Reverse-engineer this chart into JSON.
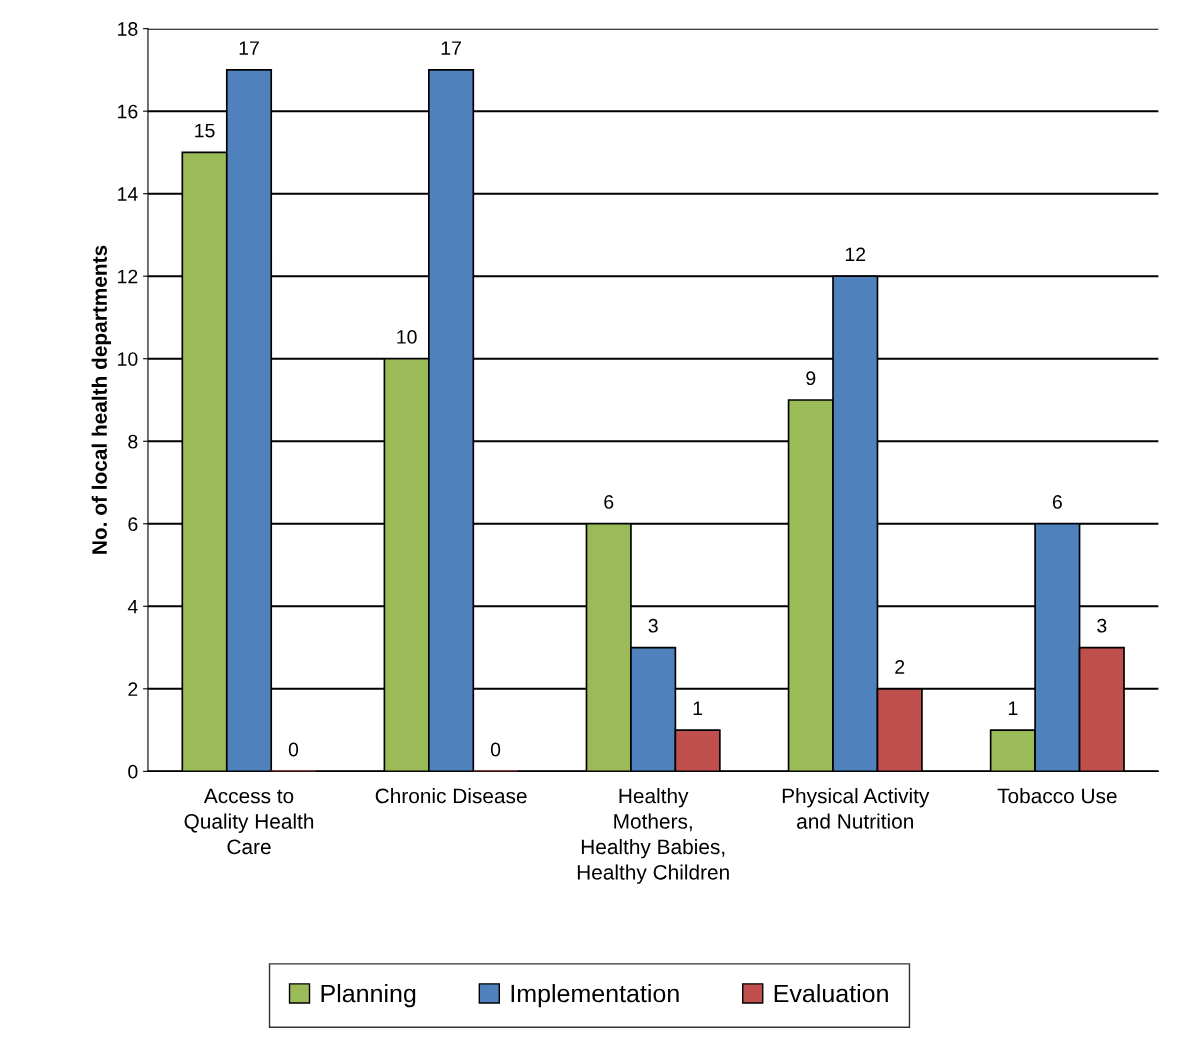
{
  "chart_data": {
    "type": "bar",
    "ylabel": "No. of local health departments",
    "categories": [
      "Access to\nQuality Health\nCare",
      "Chronic Disease",
      "Healthy\nMothers,\nHealthy Babies,\nHealthy Children",
      "Physical Activity\nand Nutrition",
      "Tobacco Use"
    ],
    "series": [
      {
        "name": "Planning",
        "color": "#9bbb59",
        "values": [
          15,
          10,
          6,
          9,
          1
        ]
      },
      {
        "name": "Implementation",
        "color": "#4f81bd",
        "values": [
          17,
          17,
          3,
          12,
          6
        ]
      },
      {
        "name": "Evaluation",
        "color": "#c0504d",
        "values": [
          0,
          0,
          1,
          2,
          3
        ]
      }
    ],
    "ylim": [
      0,
      18
    ],
    "yticks": [
      0,
      2,
      4,
      6,
      8,
      10,
      12,
      14,
      16,
      18
    ],
    "grid": "y",
    "legend": "bottom",
    "data_labels": true
  }
}
